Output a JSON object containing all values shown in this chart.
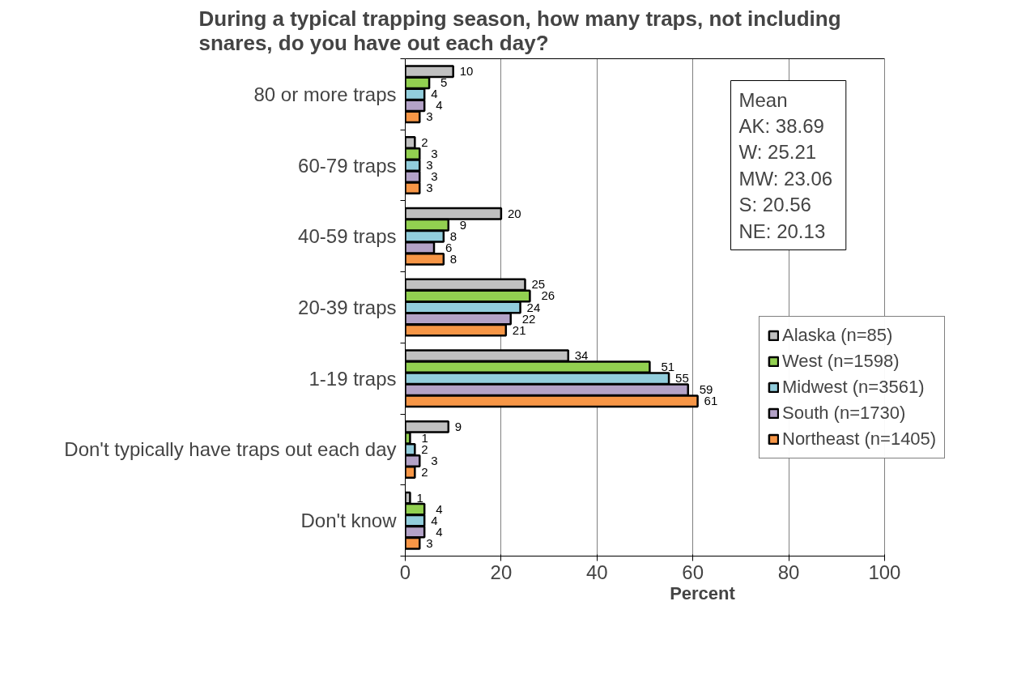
{
  "chart_data": {
    "type": "bar",
    "orientation": "horizontal",
    "title": "During a typical trapping season, how many traps, not including snares, do you have out each day?",
    "xlabel": "Percent",
    "categories": [
      "80 or more traps",
      "60-79 traps",
      "40-59 traps",
      "20-39 traps",
      "1-19 traps",
      "Don't typically have traps out each day",
      "Don't know"
    ],
    "series": [
      {
        "name": "Alaska (n=85)",
        "color": "#c0c0c0",
        "values": [
          10,
          2,
          20,
          25,
          34,
          9,
          1
        ]
      },
      {
        "name": "West (n=1598)",
        "color": "#92d050",
        "values": [
          5,
          3,
          9,
          26,
          51,
          1,
          4
        ]
      },
      {
        "name": "Midwest (n=3561)",
        "color": "#92cddc",
        "values": [
          4,
          3,
          8,
          24,
          55,
          2,
          4
        ]
      },
      {
        "name": "South (n=1730)",
        "color": "#b3a2c7",
        "values": [
          4,
          3,
          6,
          22,
          59,
          3,
          4
        ]
      },
      {
        "name": "Northeast (n=1405)",
        "color": "#f79646",
        "values": [
          3,
          3,
          8,
          21,
          61,
          2,
          3
        ]
      }
    ],
    "xlim": [
      0,
      100
    ],
    "xticks": [
      0,
      20,
      40,
      60,
      80,
      100
    ],
    "grid": "x",
    "legend": "right",
    "data_labels": true,
    "annotations": [
      "Mean",
      "AK:  38.69",
      "W:  25.21",
      "MW:  23.06",
      "S:  20.56",
      "NE:  20.13"
    ]
  }
}
